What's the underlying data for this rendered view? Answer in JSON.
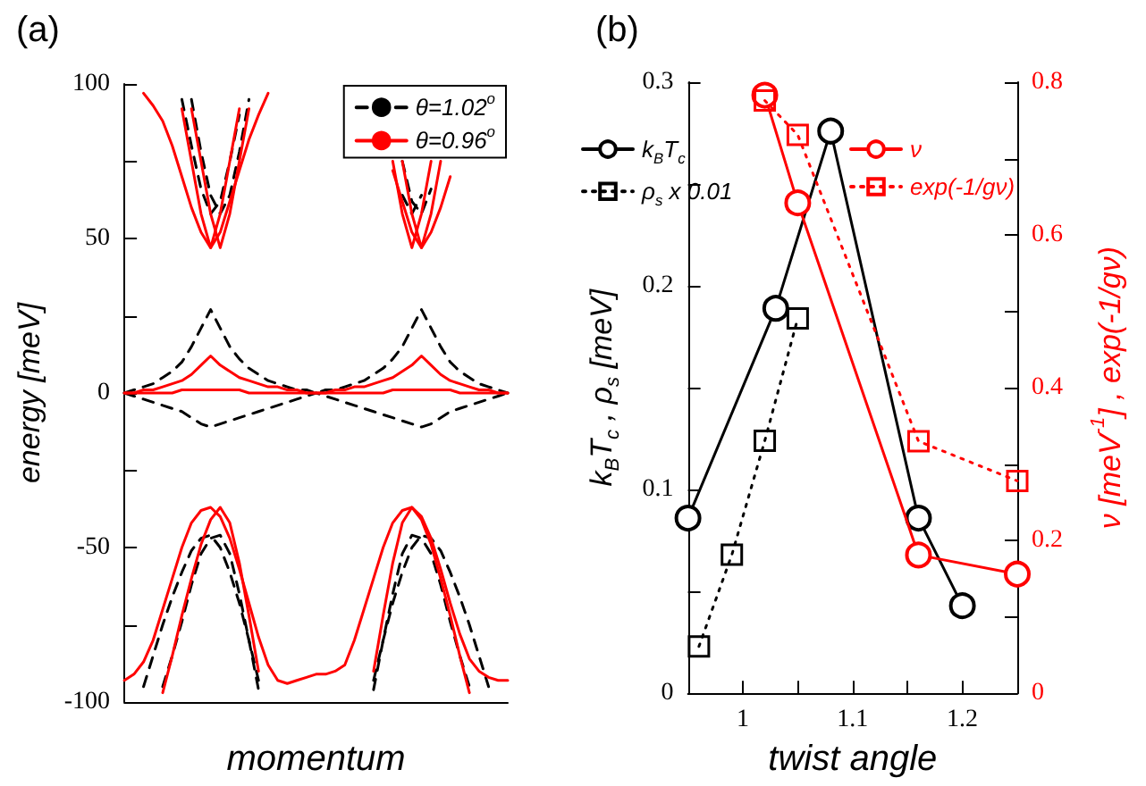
{
  "chart_data": [
    {
      "type": "line",
      "title": "(a)",
      "xlabel": "momentum",
      "ylabel": "energy [meV]",
      "categories": [
        null,
        null,
        null,
        null,
        null,
        null,
        null,
        null,
        null,
        null,
        null,
        null,
        null,
        null,
        null,
        null,
        null,
        null,
        null,
        null,
        null,
        null,
        null,
        null,
        null,
        null,
        null,
        null,
        null,
        null,
        null,
        null,
        null,
        null,
        null,
        null,
        null,
        null,
        null,
        null,
        null
      ],
      "tick_labels": "y",
      "ylim": [
        -100,
        100
      ],
      "yticks": [
        -100,
        {
          "value": -75,
          "label": null
        },
        -50,
        {
          "value": -25,
          "label": null
        },
        0,
        {
          "value": 25,
          "label": null
        },
        50,
        {
          "value": 75,
          "label": null
        },
        100
      ],
      "grid": false,
      "legend": "top right",
      "marker": "none",
      "series": [
        {
          "name": "θ=1.02$^{o}$",
          "color": "#000000",
          "line_style": "dashed",
          "values": [
            null,
            null,
            null,
            null,
            null,
            null,
            95,
            80,
            66,
            58,
            62,
            75,
            90,
            null,
            null,
            null,
            null,
            null,
            null,
            null,
            null,
            null,
            null,
            null,
            null,
            null,
            null,
            null,
            null,
            75,
            62,
            58,
            66,
            null,
            null,
            null,
            null,
            null,
            null,
            null,
            null
          ]
        },
        {
          "color": "#000000",
          "line_style": "dashed",
          "values": [
            null,
            null,
            null,
            null,
            null,
            null,
            null,
            95,
            78,
            64,
            58,
            64,
            78,
            95,
            null,
            null,
            null,
            null,
            null,
            null,
            null,
            null,
            null,
            null,
            null,
            null,
            null,
            null,
            null,
            64,
            58,
            64,
            null,
            null,
            null,
            null,
            null,
            null,
            null,
            null,
            null
          ]
        },
        {
          "color": "#000000",
          "line_style": "dashed",
          "values": [
            0,
            1,
            2,
            3,
            5,
            7,
            10,
            15,
            21,
            27,
            21,
            15,
            11,
            8,
            6,
            4,
            3,
            2,
            1,
            1,
            0,
            1,
            1,
            2,
            3,
            4,
            6,
            8,
            11,
            15,
            21,
            27,
            21,
            15,
            10,
            7,
            5,
            3,
            2,
            1,
            0
          ]
        },
        {
          "color": "#000000",
          "line_style": "dashed",
          "values": [
            0,
            -1,
            -2,
            -3,
            -4,
            -5,
            -6,
            -8,
            -10,
            -11,
            -10,
            -9,
            -8,
            -7,
            -6,
            -5,
            -4,
            -3,
            -2,
            -1,
            0,
            -1,
            -2,
            -3,
            -4,
            -5,
            -6,
            -7,
            -8,
            -9,
            -10,
            -11,
            -10,
            -8,
            -6,
            -5,
            -4,
            -3,
            -2,
            -1,
            0
          ]
        },
        {
          "color": "#000000",
          "line_style": "dashed",
          "values": [
            null,
            null,
            -95,
            -85,
            -75,
            -66,
            -58,
            -51,
            -47,
            -46,
            -50,
            -58,
            -68,
            -80,
            -93,
            null,
            null,
            null,
            null,
            null,
            null,
            null,
            null,
            null,
            null,
            null,
            -93,
            -80,
            -68,
            -58,
            -50,
            -46,
            -47,
            -51,
            -58,
            -66,
            -75,
            -85,
            -95,
            null,
            null
          ]
        },
        {
          "color": "#000000",
          "line_style": "dashed",
          "values": [
            null,
            null,
            null,
            null,
            -95,
            -85,
            -74,
            -62,
            -52,
            -47,
            -46,
            -52,
            -65,
            -80,
            -96,
            null,
            null,
            null,
            null,
            null,
            null,
            null,
            null,
            null,
            null,
            null,
            -96,
            -80,
            -65,
            -52,
            -46,
            -47,
            -52,
            -62,
            -74,
            -85,
            -95,
            null,
            null,
            null,
            null
          ]
        },
        {
          "name": "θ=0.96$^{o}$",
          "color": "#ff0000",
          "line_style": "solid",
          "values": [
            null,
            null,
            97,
            93,
            88,
            80,
            70,
            60,
            52,
            47,
            52,
            62,
            72,
            82,
            90,
            97,
            null,
            null,
            null,
            null,
            null,
            null,
            null,
            null,
            null,
            null,
            null,
            null,
            72,
            62,
            52,
            47,
            52,
            60,
            70,
            null,
            null,
            null,
            null,
            null,
            null
          ]
        },
        {
          "color": "#ff0000",
          "line_style": "solid",
          "values": [
            null,
            null,
            null,
            null,
            null,
            null,
            92,
            75,
            58,
            47,
            58,
            75,
            92,
            null,
            null,
            null,
            null,
            null,
            null,
            null,
            null,
            null,
            null,
            null,
            null,
            null,
            null,
            null,
            null,
            75,
            58,
            47,
            58,
            75,
            null,
            null,
            null,
            null,
            null,
            null,
            null
          ]
        },
        {
          "color": "#ff0000",
          "line_style": "solid",
          "values": [
            null,
            null,
            null,
            null,
            null,
            null,
            null,
            92,
            75,
            58,
            47,
            58,
            75,
            92,
            null,
            null,
            null,
            null,
            null,
            null,
            null,
            null,
            null,
            null,
            null,
            null,
            null,
            null,
            75,
            58,
            47,
            58,
            75,
            null,
            null,
            null,
            null,
            null,
            null,
            null,
            null
          ]
        },
        {
          "color": "#ff0000",
          "line_style": "solid",
          "values": [
            0,
            0,
            1,
            1,
            2,
            3,
            4,
            6,
            9,
            12,
            9,
            7,
            5,
            4,
            3,
            2,
            2,
            1,
            1,
            0,
            0,
            0,
            1,
            1,
            2,
            2,
            3,
            4,
            5,
            7,
            9,
            12,
            9,
            6,
            4,
            3,
            2,
            1,
            1,
            0,
            0
          ]
        },
        {
          "color": "#ff0000",
          "line_style": "solid",
          "values": [
            0,
            0,
            0,
            0,
            0,
            0,
            1,
            1,
            1,
            1,
            1,
            1,
            1,
            0,
            0,
            0,
            0,
            0,
            0,
            0,
            0,
            0,
            0,
            0,
            0,
            0,
            0,
            0,
            1,
            1,
            1,
            1,
            1,
            1,
            1,
            0,
            0,
            0,
            0,
            0,
            0
          ]
        },
        {
          "color": "#ff0000",
          "line_style": "solid",
          "values": [
            -93,
            -91,
            -87,
            -80,
            -70,
            -60,
            -50,
            -42,
            -38,
            -37,
            -40,
            -47,
            -57,
            -68,
            -79,
            -88,
            -93,
            -94,
            -93,
            -92,
            -91,
            -91,
            -90,
            -88,
            -80,
            -70,
            -60,
            -50,
            -42,
            -38,
            -37,
            -40,
            -47,
            -57,
            -68,
            -78,
            -86,
            -90,
            -92,
            -93,
            -93
          ]
        },
        {
          "color": "#ff0000",
          "line_style": "solid",
          "values": [
            null,
            null,
            null,
            null,
            -97,
            -85,
            -72,
            -60,
            -49,
            -41,
            -37,
            -42,
            -55,
            -72,
            -90,
            null,
            null,
            null,
            null,
            null,
            null,
            null,
            null,
            null,
            null,
            null,
            -90,
            -72,
            -55,
            -42,
            -37,
            -41,
            -49,
            -60,
            -72,
            -85,
            -97,
            null,
            null,
            null,
            null
          ]
        }
      ]
    },
    {
      "type": "line",
      "title": "(b)",
      "xlabel": "twist angle",
      "ylabel": "k$_{B}$T$_{c}$ , ρ$_{s}$ [meV]",
      "y2label": "ν [meV$^{-1}$] , exp(-1/gν)",
      "xlim": [
        0.95,
        1.25
      ],
      "xticks": [
        1,
        {
          "value": 1.05,
          "label": null
        },
        1.1,
        {
          "value": 1.15,
          "label": null
        },
        1.2
      ],
      "ylim": [
        0,
        0.3
      ],
      "yticks": [
        0,
        {
          "value": 0.05,
          "label": null
        },
        0.1,
        {
          "value": 0.15,
          "label": null
        },
        0.2,
        {
          "value": 0.25,
          "label": null
        },
        0.3
      ],
      "y2lim": [
        0,
        0.8
      ],
      "y2ticks": [
        0,
        {
          "value": 0.1,
          "label": null
        },
        0.2,
        {
          "value": 0.3,
          "label": null
        },
        0.4,
        {
          "value": 0.5,
          "label": null
        },
        0.6,
        {
          "value": 0.7,
          "label": null
        },
        0.8
      ],
      "grid": false,
      "legend": "top left",
      "series": [
        {
          "name": "k$_{B}$T$_{c}$",
          "color": "#000000",
          "marker": "circle",
          "line_style": "solid",
          "x": [
            0.95,
            1.03,
            1.08,
            1.16,
            1.2
          ],
          "values": [
            0.086,
            0.189,
            0.276,
            0.086,
            0.043
          ]
        },
        {
          "name": "ρ$_{s}$ x 0.01",
          "color": "#000000",
          "marker": "square",
          "line_style": "dotted",
          "x": [
            0.96,
            0.99,
            1.02,
            1.05
          ],
          "values": [
            0.023,
            0.068,
            0.124,
            0.184
          ]
        },
        {
          "name": "ν",
          "color": "#ff0000",
          "marker": "circle",
          "line_style": "solid",
          "axis": "y2",
          "x": [
            1.02,
            1.05,
            1.16,
            1.25
          ],
          "values": [
            0.783,
            0.642,
            0.181,
            0.156
          ]
        },
        {
          "name": "exp(-1/gν)",
          "color": "#ff0000",
          "marker": "square",
          "line_style": "dotted",
          "axis": "y2",
          "x": [
            1.02,
            1.05,
            1.16,
            1.25
          ],
          "values": [
            0.776,
            0.731,
            0.33,
            0.278
          ]
        }
      ]
    }
  ]
}
